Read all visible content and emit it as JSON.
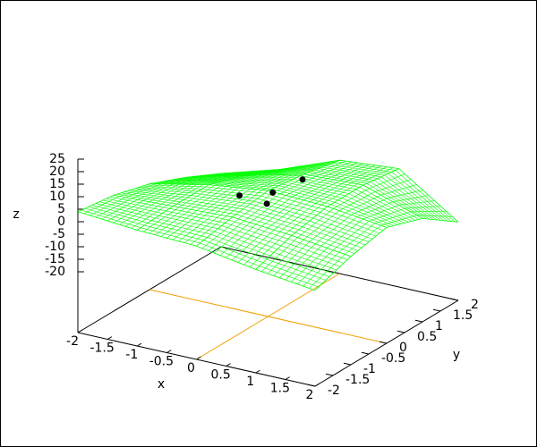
{
  "chart_data": {
    "type": "surface",
    "xlabel": "x",
    "ylabel": "y",
    "zlabel": "z",
    "xlim": [
      -2,
      2
    ],
    "ylim": [
      -2,
      2
    ],
    "zlim": [
      -20,
      25
    ],
    "xticks": [
      -2,
      -1.5,
      -1,
      -0.5,
      0,
      0.5,
      1,
      1.5,
      2
    ],
    "yticks": [
      -2,
      -1.5,
      -1,
      -0.5,
      0,
      0.5,
      1,
      1.5,
      2
    ],
    "zticks": [
      -20,
      -15,
      -10,
      -5,
      0,
      5,
      10,
      15,
      20,
      25
    ],
    "surface": {
      "color": "#00ff00",
      "x": [
        -2,
        -1,
        0,
        1,
        2
      ],
      "y": [
        -2,
        -1,
        0,
        1,
        2
      ],
      "z": [
        [
          4,
          2,
          1,
          -3,
          -6
        ],
        [
          2,
          3,
          4,
          2,
          -1
        ],
        [
          -2,
          3,
          6,
          5,
          2
        ],
        [
          -8,
          -2,
          4,
          5,
          -3
        ],
        [
          -15,
          -8,
          1,
          3,
          -13
        ]
      ]
    },
    "points": {
      "color": "#000000",
      "x": [
        -0.3,
        0.2,
        0.1,
        0.4
      ],
      "y": [
        -0.3,
        -0.2,
        -0.2,
        0.3
      ],
      "z": [
        5,
        8,
        3,
        10
      ]
    }
  }
}
